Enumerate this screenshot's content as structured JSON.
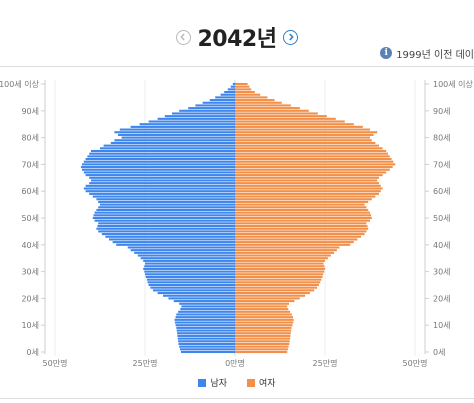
{
  "header": {
    "year_title": "2042년",
    "info_text": "1999년 이전 데이"
  },
  "colors": {
    "male": "#3e86ec",
    "female": "#f2904a"
  },
  "chart_data": {
    "type": "bar",
    "orientation": "horizontal-population-pyramid",
    "title": "",
    "unit": "만명",
    "y_ticks": [
      "100세 이상",
      "90세",
      "80세",
      "70세",
      "60세",
      "50세",
      "40세",
      "30세",
      "20세",
      "10세",
      "0세"
    ],
    "x_ticks": [
      "50만명",
      "25만명",
      "0만명",
      "25만명",
      "50만명"
    ],
    "xlim": [
      -50,
      50
    ],
    "ages": [
      "0",
      "1",
      "2",
      "3",
      "4",
      "5",
      "6",
      "7",
      "8",
      "9",
      "10",
      "11",
      "12",
      "13",
      "14",
      "15",
      "16",
      "17",
      "18",
      "19",
      "20",
      "21",
      "22",
      "23",
      "24",
      "25",
      "26",
      "27",
      "28",
      "29",
      "30",
      "31",
      "32",
      "33",
      "34",
      "35",
      "36",
      "37",
      "38",
      "39",
      "40",
      "41",
      "42",
      "43",
      "44",
      "45",
      "46",
      "47",
      "48",
      "49",
      "50",
      "51",
      "52",
      "53",
      "54",
      "55",
      "56",
      "57",
      "58",
      "59",
      "60",
      "61",
      "62",
      "63",
      "64",
      "65",
      "66",
      "67",
      "68",
      "69",
      "70",
      "71",
      "72",
      "73",
      "74",
      "75",
      "76",
      "77",
      "78",
      "79",
      "80",
      "81",
      "82",
      "83",
      "84",
      "85",
      "86",
      "87",
      "88",
      "89",
      "90",
      "91",
      "92",
      "93",
      "94",
      "95",
      "96",
      "97",
      "98",
      "99",
      "100+"
    ],
    "series": [
      {
        "name": "남자",
        "values": [
          15.0,
          15.3,
          15.5,
          15.7,
          15.8,
          15.9,
          16.0,
          16.1,
          16.2,
          16.3,
          16.5,
          16.7,
          16.8,
          16.5,
          16.3,
          15.8,
          15.2,
          14.9,
          15.5,
          17.0,
          18.5,
          20.0,
          21.5,
          22.8,
          23.5,
          24.0,
          24.3,
          24.5,
          24.8,
          25.0,
          25.2,
          25.5,
          25.2,
          25.0,
          25.5,
          26.2,
          27.0,
          28.0,
          29.0,
          29.8,
          33.0,
          34.0,
          35.0,
          36.0,
          37.0,
          38.0,
          38.5,
          38.2,
          38.0,
          39.0,
          39.5,
          39.3,
          39.0,
          38.5,
          38.0,
          37.5,
          38.0,
          38.5,
          39.5,
          40.5,
          41.5,
          42.0,
          41.5,
          40.5,
          40.0,
          40.5,
          41.5,
          42.0,
          42.5,
          42.8,
          42.5,
          42.0,
          41.5,
          41.0,
          40.5,
          40.0,
          37.5,
          36.5,
          34.5,
          33.5,
          31.5,
          32.5,
          33.5,
          32.0,
          29.0,
          26.5,
          24.0,
          21.5,
          19.5,
          17.5,
          15.5,
          13.0,
          11.0,
          9.0,
          7.0,
          5.5,
          4.0,
          3.0,
          2.0,
          1.2,
          0.6
        ]
      },
      {
        "name": "여자",
        "values": [
          14.5,
          14.7,
          14.9,
          15.1,
          15.2,
          15.3,
          15.4,
          15.5,
          15.6,
          15.7,
          16.0,
          16.2,
          16.3,
          16.1,
          15.8,
          15.3,
          14.8,
          14.5,
          15.0,
          16.5,
          18.0,
          19.5,
          20.8,
          22.0,
          22.8,
          23.3,
          23.7,
          24.0,
          24.3,
          24.5,
          24.8,
          25.0,
          24.8,
          24.6,
          25.0,
          25.8,
          26.6,
          27.5,
          28.3,
          29.0,
          32.0,
          33.0,
          34.0,
          35.0,
          36.0,
          36.5,
          37.0,
          36.8,
          36.5,
          37.5,
          38.0,
          37.8,
          37.5,
          37.0,
          36.5,
          36.0,
          37.0,
          38.0,
          39.0,
          40.0,
          40.5,
          41.0,
          40.5,
          40.0,
          39.5,
          40.0,
          41.0,
          42.0,
          43.0,
          43.8,
          44.5,
          44.0,
          43.5,
          43.0,
          42.5,
          42.0,
          41.0,
          40.0,
          39.0,
          38.0,
          37.5,
          38.5,
          39.5,
          37.5,
          35.5,
          33.0,
          30.5,
          28.0,
          25.5,
          23.0,
          20.5,
          18.0,
          15.5,
          13.0,
          11.0,
          9.0,
          7.0,
          5.5,
          4.5,
          4.0,
          3.5
        ]
      }
    ],
    "legend": [
      "남자",
      "여자"
    ],
    "legend_position": "bottom-center",
    "grid": "vertical-lines"
  }
}
